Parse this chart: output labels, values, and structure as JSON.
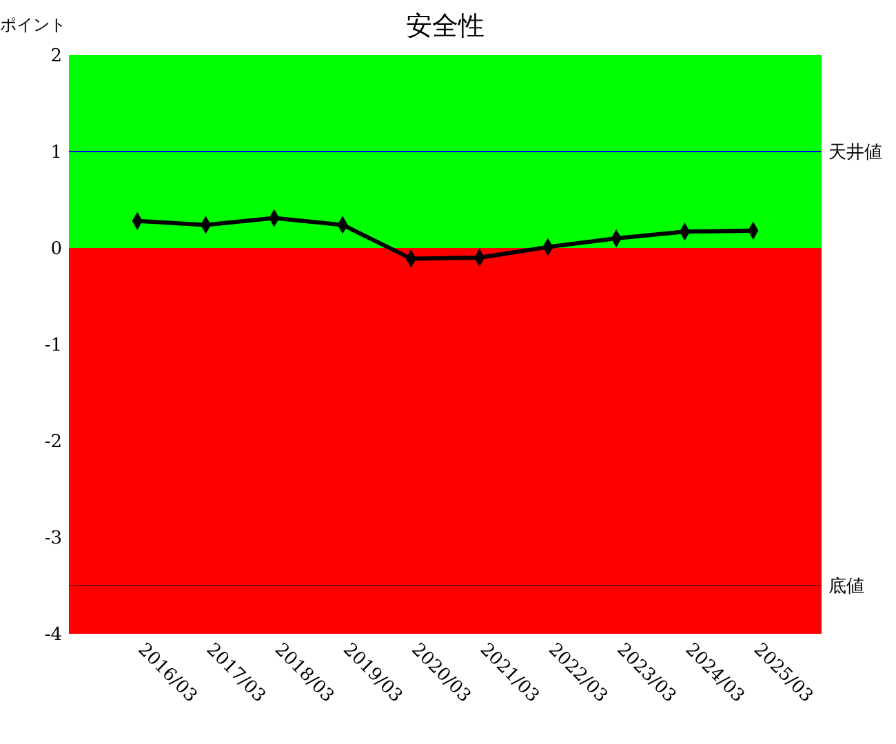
{
  "chart_data": {
    "type": "line",
    "title": "安全性",
    "ylabel": "ポイント",
    "categories": [
      "2016/03",
      "2017/03",
      "2018/03",
      "2019/03",
      "2020/03",
      "2021/03",
      "2022/03",
      "2023/03",
      "2024/03",
      "2025/03"
    ],
    "series": [
      {
        "color": "#000000",
        "values": [
          0.28,
          0.24,
          0.31,
          0.24,
          -0.11,
          -0.1,
          0.01,
          0.1,
          0.17,
          0.18
        ]
      }
    ],
    "ylim": [
      -4,
      2
    ],
    "yticks": [
      -4,
      -3,
      -2,
      -1,
      0,
      1,
      2
    ],
    "bands": [
      {
        "axis": "y",
        "from": 0,
        "to": 2,
        "color": "#00ff00"
      },
      {
        "axis": "y",
        "from": -4,
        "to": 0,
        "color": "#ff0000"
      }
    ],
    "ref_lines": [
      {
        "axis": "y",
        "value": 1,
        "label": "天井値",
        "color": "#0000ff"
      },
      {
        "axis": "y",
        "value": -3.5,
        "label": "底値",
        "color": "#8b0000"
      }
    ],
    "marker": "diamond",
    "line_style": "solid",
    "grid": false
  }
}
